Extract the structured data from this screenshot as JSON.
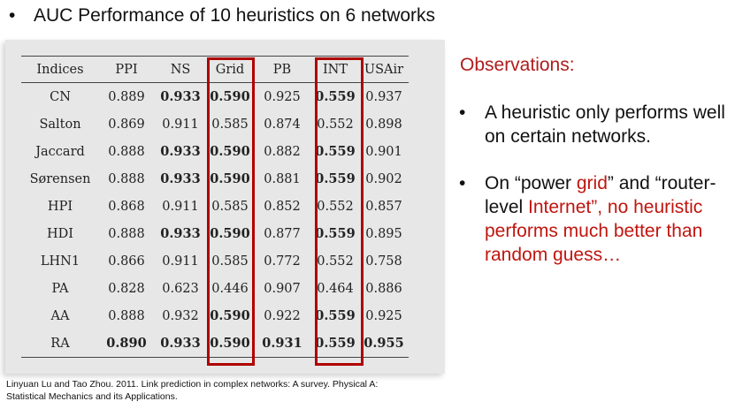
{
  "title": {
    "bullet": "•",
    "text": "AUC Performance of 10 heuristics on 6 networks"
  },
  "table": {
    "columns": [
      "Indices",
      "PPI",
      "NS",
      "Grid",
      "PB",
      "INT",
      "USAir"
    ],
    "rows": [
      {
        "label": "CN",
        "values": [
          "0.889",
          "0.933",
          "0.590",
          "0.925",
          "0.559",
          "0.937"
        ],
        "bold": [
          false,
          true,
          true,
          false,
          true,
          false
        ]
      },
      {
        "label": "Salton",
        "values": [
          "0.869",
          "0.911",
          "0.585",
          "0.874",
          "0.552",
          "0.898"
        ],
        "bold": [
          false,
          false,
          false,
          false,
          false,
          false
        ]
      },
      {
        "label": "Jaccard",
        "values": [
          "0.888",
          "0.933",
          "0.590",
          "0.882",
          "0.559",
          "0.901"
        ],
        "bold": [
          false,
          true,
          true,
          false,
          true,
          false
        ]
      },
      {
        "label": "Sørensen",
        "values": [
          "0.888",
          "0.933",
          "0.590",
          "0.881",
          "0.559",
          "0.902"
        ],
        "bold": [
          false,
          true,
          true,
          false,
          true,
          false
        ]
      },
      {
        "label": "HPI",
        "values": [
          "0.868",
          "0.911",
          "0.585",
          "0.852",
          "0.552",
          "0.857"
        ],
        "bold": [
          false,
          false,
          false,
          false,
          false,
          false
        ]
      },
      {
        "label": "HDI",
        "values": [
          "0.888",
          "0.933",
          "0.590",
          "0.877",
          "0.559",
          "0.895"
        ],
        "bold": [
          false,
          true,
          true,
          false,
          true,
          false
        ]
      },
      {
        "label": "LHN1",
        "values": [
          "0.866",
          "0.911",
          "0.585",
          "0.772",
          "0.552",
          "0.758"
        ],
        "bold": [
          false,
          false,
          false,
          false,
          false,
          false
        ]
      },
      {
        "label": "PA",
        "values": [
          "0.828",
          "0.623",
          "0.446",
          "0.907",
          "0.464",
          "0.886"
        ],
        "bold": [
          false,
          false,
          false,
          false,
          false,
          false
        ]
      },
      {
        "label": "AA",
        "values": [
          "0.888",
          "0.932",
          "0.590",
          "0.922",
          "0.559",
          "0.925"
        ],
        "bold": [
          false,
          false,
          true,
          false,
          true,
          false
        ]
      },
      {
        "label": "RA",
        "values": [
          "0.890",
          "0.933",
          "0.590",
          "0.931",
          "0.559",
          "0.955"
        ],
        "bold": [
          true,
          true,
          true,
          true,
          true,
          true
        ]
      }
    ],
    "highlighted_columns": [
      "Grid",
      "INT"
    ],
    "highlight_color": "#b00000"
  },
  "observations": {
    "title": "Observations:",
    "title_color": "#b01c1c",
    "bullet": "•",
    "item1": "A heuristic only performs well on certain networks.",
    "item2": {
      "part1": "On “power ",
      "part2": "grid",
      "part3": "” and “router-level ",
      "part4": "Internet",
      "part5": "”, no heuristic performs much better than random guess…"
    },
    "accent_color": "#c0150f"
  },
  "citation": {
    "line1": "Linyuan Lu and Tao Zhou. 2011. Link prediction in complex networks: A survey. Physical A:",
    "line2": "Statistical Mechanics and its Applications."
  }
}
